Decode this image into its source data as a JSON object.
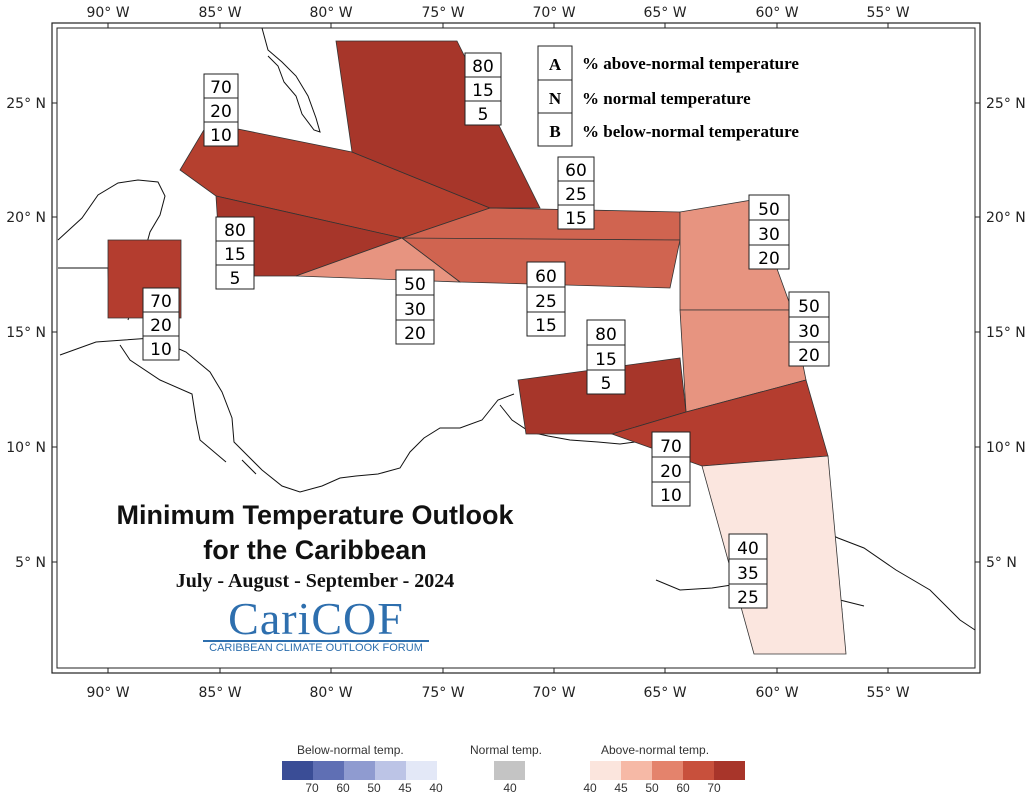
{
  "lon_labels": [
    "90° W",
    "85° W",
    "80° W",
    "75° W",
    "70° W",
    "65° W",
    "60° W",
    "55° W"
  ],
  "lat_labels": [
    "25° N",
    "20° N",
    "15° N",
    "10° N",
    "5° N"
  ],
  "key": [
    {
      "letter": "A",
      "text": "% above-normal temperature"
    },
    {
      "letter": "N",
      "text": "% normal temperature"
    },
    {
      "letter": "B",
      "text": "% below-normal temperature"
    }
  ],
  "zones": [
    {
      "id": "cuba-cayman",
      "above": "70",
      "normal": "20",
      "below": "10",
      "fill": "#b5402f"
    },
    {
      "id": "bahamas",
      "above": "80",
      "normal": "15",
      "below": "5",
      "fill": "#a7362a"
    },
    {
      "id": "hispaniola-pr",
      "above": "60",
      "normal": "25",
      "below": "15",
      "fill": "#d06450"
    },
    {
      "id": "belize",
      "above": "70",
      "normal": "20",
      "below": "10",
      "fill": "#b43d2f"
    },
    {
      "id": "cayman-jamaica-west",
      "above": "80",
      "normal": "15",
      "below": "5",
      "fill": "#a7362a"
    },
    {
      "id": "jamaica",
      "above": "50",
      "normal": "30",
      "below": "20",
      "fill": "#e79480"
    },
    {
      "id": "hispaniola-south",
      "above": "60",
      "normal": "25",
      "below": "15",
      "fill": "#d06450"
    },
    {
      "id": "leeward-islands",
      "above": "50",
      "normal": "30",
      "below": "20",
      "fill": "#e79480"
    },
    {
      "id": "windward-islands",
      "above": "50",
      "normal": "30",
      "below": "20",
      "fill": "#e79480"
    },
    {
      "id": "abc-islands",
      "above": "80",
      "normal": "15",
      "below": "5",
      "fill": "#a7362a"
    },
    {
      "id": "trinidad-tobago",
      "above": "70",
      "normal": "20",
      "below": "10",
      "fill": "#b43d2f"
    },
    {
      "id": "guianas",
      "above": "40",
      "normal": "35",
      "below": "25",
      "fill": "#fbe6df"
    }
  ],
  "title": {
    "line1": "Minimum Temperature Outlook",
    "line2": "for the Caribbean",
    "period": "July - August - September - 2024"
  },
  "brand": {
    "name_part1": "Cari",
    "name_part2": "COF",
    "subtitle": "CARIBBEAN CLIMATE OUTLOOK FORUM"
  },
  "legend": {
    "below_title": "Below-normal temp.",
    "normal_title": "Normal temp.",
    "above_title": "Above-normal temp.",
    "below_colors": [
      "#3a4d96",
      "#5f6fb4",
      "#8f9bd0",
      "#bcc4e6",
      "#e3e8f7"
    ],
    "below_ticks": [
      "70",
      "60",
      "50",
      "45",
      "40"
    ],
    "normal_color": "#c4c4c4",
    "normal_ticks": [
      "40"
    ],
    "above_colors": [
      "#fbe5dd",
      "#f6b9a6",
      "#e4836c",
      "#c8503c",
      "#a8352a"
    ],
    "above_ticks": [
      "40",
      "45",
      "50",
      "60",
      "70"
    ]
  }
}
